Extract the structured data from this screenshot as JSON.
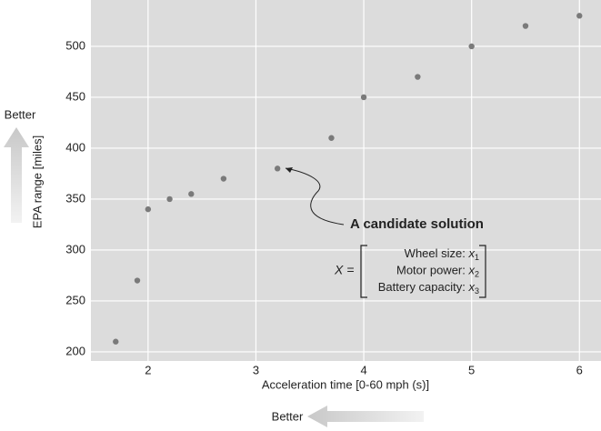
{
  "chart_data": {
    "type": "scatter",
    "x": [
      1.7,
      1.9,
      2.0,
      2.2,
      2.4,
      2.7,
      3.2,
      3.7,
      4.0,
      4.5,
      5.0,
      5.5,
      6.0
    ],
    "y": [
      210,
      270,
      340,
      350,
      355,
      370,
      380,
      410,
      450,
      470,
      500,
      520,
      530
    ],
    "color": "#7a7a7a",
    "background": "#dcdcdc",
    "grid": true,
    "xlabel": "Acceleration time [0-60 mph (s)]",
    "ylabel": "EPA range [miles]",
    "xlim": [
      1.47,
      6.2
    ],
    "ylim": [
      191,
      545.5
    ],
    "xticks": [
      2,
      3,
      4,
      5,
      6
    ],
    "yticks": [
      200,
      250,
      300,
      350,
      400,
      450,
      500
    ],
    "y_better": "Better",
    "x_better": "Better",
    "annotation": {
      "title": "A candidate solution",
      "lhs": "X =",
      "rows": [
        {
          "text": "Wheel size: ",
          "var": "x",
          "sub": "1"
        },
        {
          "text": "Motor power: ",
          "var": "x",
          "sub": "2"
        },
        {
          "text": "Battery capacity: ",
          "var": "x",
          "sub": "3"
        }
      ]
    }
  }
}
